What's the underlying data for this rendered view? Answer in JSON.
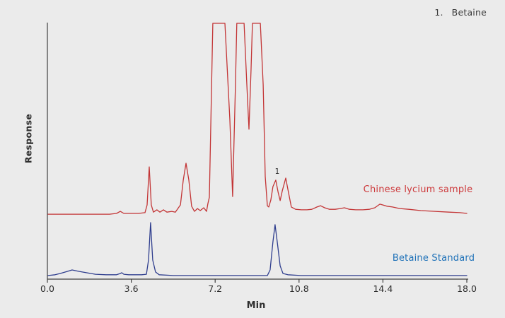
{
  "theme": {
    "background": "#ebebeb",
    "axis_color": "#3f3f3f",
    "tick_text_color": "#2d2d2d",
    "legend_text_color": "#3a3a3a"
  },
  "chart_data": {
    "type": "line",
    "title": "",
    "xlabel": "Min",
    "ylabel": "Response",
    "xlim": [
      0,
      18
    ],
    "ylim": [
      0,
      100
    ],
    "grid": false,
    "x_ticks": [
      {
        "value": 0,
        "label": "0.0"
      },
      {
        "value": 3.6,
        "label": "3.6"
      },
      {
        "value": 7.2,
        "label": "7.2"
      },
      {
        "value": 10.8,
        "label": "10.8"
      },
      {
        "value": 14.4,
        "label": "14.4"
      },
      {
        "value": 18,
        "label": "18.0"
      }
    ],
    "legend": {
      "position": "top-right",
      "entries": [
        {
          "number": "1.",
          "name": "Betaine"
        }
      ]
    },
    "peak_annotations": [
      {
        "label": "1",
        "x": 9.8,
        "y": 40.5,
        "series": "Chinese lycium sample"
      }
    ],
    "series": [
      {
        "name": "Chinese lycium sample",
        "color": "#c33536",
        "label_color": "#cd3a3c",
        "saturated_clipped_peaks_x": [
          [
            7.1,
            7.62
          ],
          [
            8.13,
            8.44
          ],
          [
            8.8,
            9.14
          ]
        ],
        "points": [
          [
            0.03,
            25.4
          ],
          [
            2.0,
            25.4
          ],
          [
            2.67,
            25.4
          ],
          [
            2.97,
            25.7
          ],
          [
            3.13,
            26.5
          ],
          [
            3.28,
            25.7
          ],
          [
            3.92,
            25.7
          ],
          [
            4.19,
            26.0
          ],
          [
            4.28,
            29.0
          ],
          [
            4.37,
            43.9
          ],
          [
            4.46,
            29.0
          ],
          [
            4.55,
            26.2
          ],
          [
            4.7,
            27.1
          ],
          [
            4.83,
            26.2
          ],
          [
            4.98,
            27.1
          ],
          [
            5.13,
            26.2
          ],
          [
            5.34,
            26.5
          ],
          [
            5.49,
            26.2
          ],
          [
            5.71,
            29.0
          ],
          [
            5.83,
            38.7
          ],
          [
            5.95,
            45.3
          ],
          [
            6.07,
            38.7
          ],
          [
            6.19,
            28.5
          ],
          [
            6.31,
            26.5
          ],
          [
            6.44,
            27.6
          ],
          [
            6.56,
            26.8
          ],
          [
            6.71,
            27.9
          ],
          [
            6.83,
            26.5
          ],
          [
            6.89,
            29.6
          ],
          [
            6.95,
            32.0
          ],
          [
            7.1,
            100
          ],
          [
            7.62,
            100
          ],
          [
            7.83,
            62.2
          ],
          [
            7.95,
            32.3
          ],
          [
            8.07,
            76.0
          ],
          [
            8.13,
            100
          ],
          [
            8.44,
            100
          ],
          [
            8.56,
            76.0
          ],
          [
            8.65,
            58.6
          ],
          [
            8.74,
            81.5
          ],
          [
            8.8,
            100
          ],
          [
            9.14,
            100
          ],
          [
            9.26,
            76.0
          ],
          [
            9.35,
            40.1
          ],
          [
            9.44,
            28.7
          ],
          [
            9.5,
            28.2
          ],
          [
            9.59,
            30.9
          ],
          [
            9.68,
            36.2
          ],
          [
            9.8,
            38.7
          ],
          [
            9.9,
            34.0
          ],
          [
            9.99,
            30.7
          ],
          [
            10.08,
            34.5
          ],
          [
            10.23,
            39.5
          ],
          [
            10.35,
            33.7
          ],
          [
            10.47,
            28.2
          ],
          [
            10.65,
            27.3
          ],
          [
            10.9,
            27.1
          ],
          [
            11.14,
            27.1
          ],
          [
            11.35,
            27.3
          ],
          [
            11.57,
            28.2
          ],
          [
            11.72,
            28.7
          ],
          [
            11.9,
            27.9
          ],
          [
            12.11,
            27.3
          ],
          [
            12.35,
            27.3
          ],
          [
            12.57,
            27.6
          ],
          [
            12.75,
            27.9
          ],
          [
            12.96,
            27.3
          ],
          [
            13.23,
            27.1
          ],
          [
            13.54,
            27.1
          ],
          [
            13.81,
            27.3
          ],
          [
            14.05,
            27.9
          ],
          [
            14.27,
            29.3
          ],
          [
            14.39,
            29.0
          ],
          [
            14.57,
            28.5
          ],
          [
            14.81,
            28.2
          ],
          [
            15.12,
            27.6
          ],
          [
            15.51,
            27.3
          ],
          [
            16.03,
            26.8
          ],
          [
            16.63,
            26.5
          ],
          [
            17.24,
            26.2
          ],
          [
            17.7,
            26.0
          ],
          [
            18.0,
            25.7
          ]
        ]
      },
      {
        "name": "Betaine Standard",
        "color": "#2f3e8e",
        "label_color": "#1e71b8",
        "points": [
          [
            0.03,
            1.4
          ],
          [
            0.33,
            1.7
          ],
          [
            0.55,
            2.2
          ],
          [
            0.85,
            3.0
          ],
          [
            1.06,
            3.6
          ],
          [
            1.37,
            3.0
          ],
          [
            1.67,
            2.5
          ],
          [
            2.06,
            1.9
          ],
          [
            2.52,
            1.7
          ],
          [
            2.97,
            1.7
          ],
          [
            3.13,
            2.2
          ],
          [
            3.19,
            2.5
          ],
          [
            3.28,
            1.9
          ],
          [
            3.49,
            1.7
          ],
          [
            4.04,
            1.7
          ],
          [
            4.25,
            1.9
          ],
          [
            4.34,
            7.5
          ],
          [
            4.43,
            22.1
          ],
          [
            4.52,
            7.5
          ],
          [
            4.64,
            2.8
          ],
          [
            4.8,
            1.7
          ],
          [
            5.4,
            1.4
          ],
          [
            7.07,
            1.4
          ],
          [
            9.44,
            1.4
          ],
          [
            9.56,
            3.6
          ],
          [
            9.68,
            14.6
          ],
          [
            9.77,
            21.3
          ],
          [
            9.87,
            14.1
          ],
          [
            9.99,
            5.2
          ],
          [
            10.11,
            2.2
          ],
          [
            10.32,
            1.7
          ],
          [
            10.87,
            1.4
          ],
          [
            14.66,
            1.4
          ],
          [
            18.0,
            1.4
          ]
        ]
      }
    ]
  }
}
